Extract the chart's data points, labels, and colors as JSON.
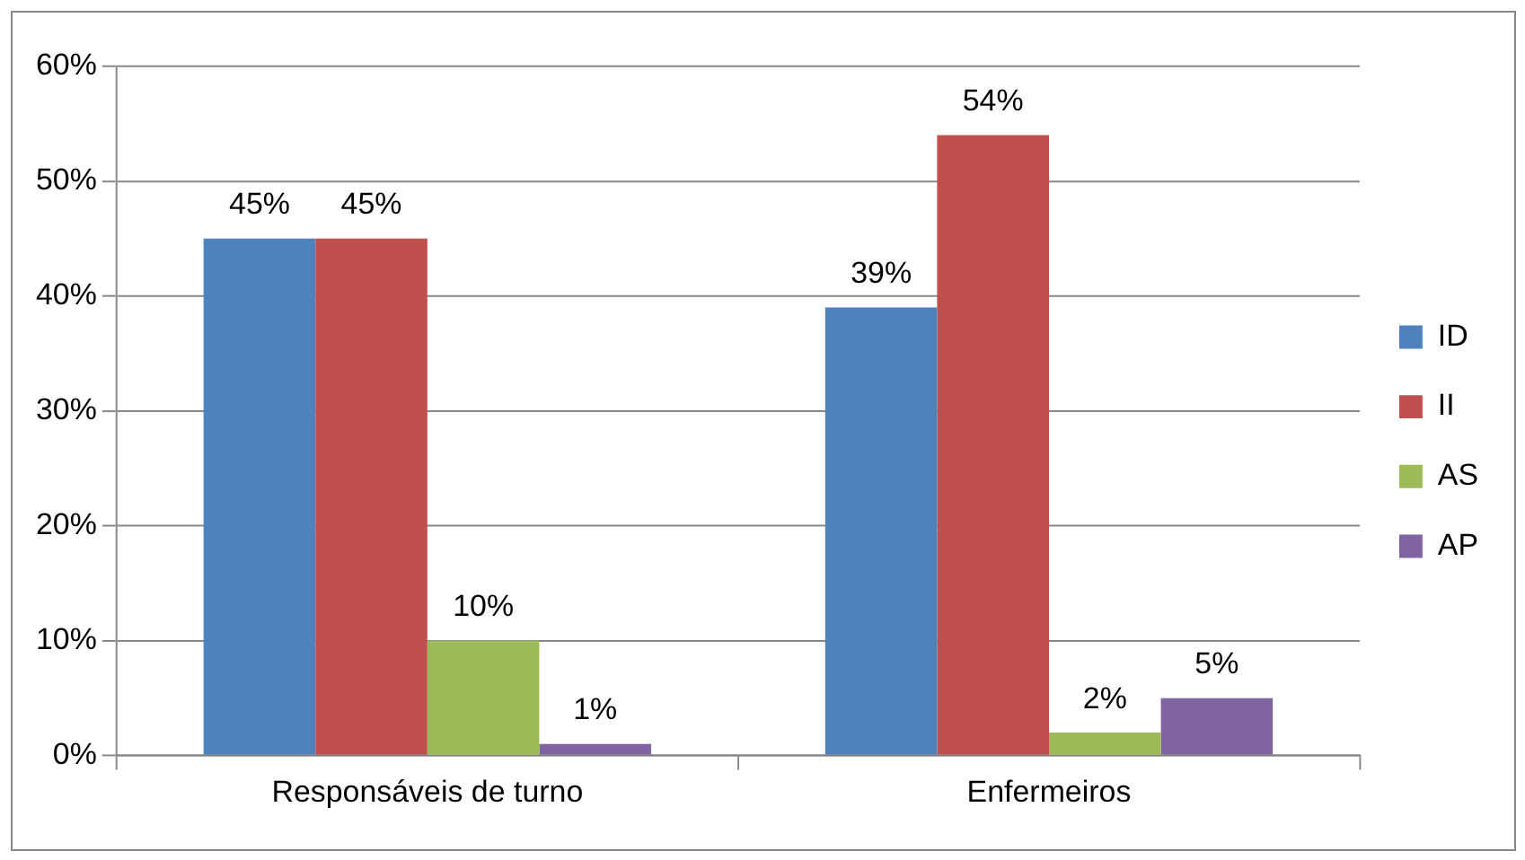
{
  "chart_data": {
    "type": "bar",
    "categories": [
      "Responsáveis de turno",
      "Enfermeiros"
    ],
    "series": [
      {
        "name": "ID",
        "color": "#4f81bd",
        "values": [
          45,
          39
        ],
        "value_labels": [
          "45%",
          "39%"
        ]
      },
      {
        "name": "II",
        "color": "#c0504d",
        "values": [
          45,
          54
        ],
        "value_labels": [
          "45%",
          "54%"
        ]
      },
      {
        "name": "AS",
        "color": "#9bbb59",
        "values": [
          10,
          2
        ],
        "value_labels": [
          "10%",
          "2%"
        ]
      },
      {
        "name": "AP",
        "color": "#8064a2",
        "values": [
          1,
          5
        ],
        "value_labels": [
          "1%",
          "5%"
        ]
      }
    ],
    "ylim": [
      0,
      60
    ],
    "yticks": [
      {
        "value": 0,
        "label": "0%"
      },
      {
        "value": 10,
        "label": "10%"
      },
      {
        "value": 20,
        "label": "20%"
      },
      {
        "value": 30,
        "label": "30%"
      },
      {
        "value": 40,
        "label": "40%"
      },
      {
        "value": 50,
        "label": "50%"
      },
      {
        "value": 60,
        "label": "60%"
      }
    ],
    "grid": "y",
    "legend": "right"
  }
}
